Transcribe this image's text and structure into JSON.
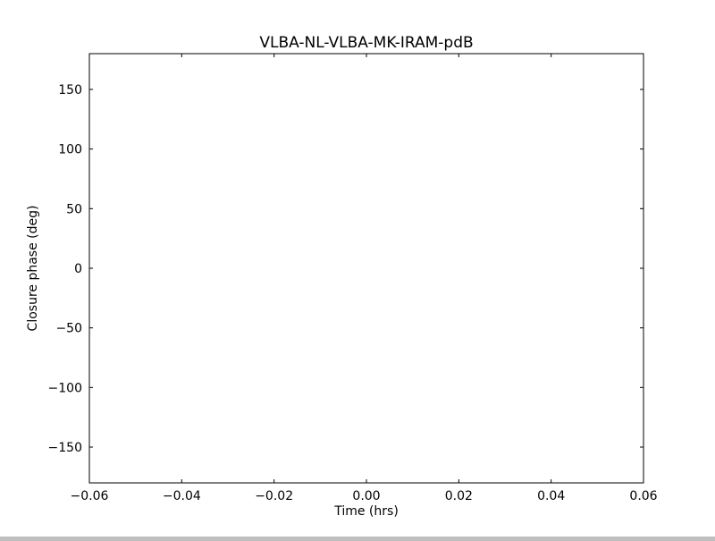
{
  "chart_data": {
    "type": "scatter",
    "title": "VLBA-NL-VLBA-MK-IRAM-pdB",
    "xlabel": "Time (hrs)",
    "ylabel": "Closure phase (deg)",
    "xlim": [
      -0.06,
      0.06
    ],
    "ylim": [
      -180,
      180
    ],
    "xticks": [
      -0.06,
      -0.04,
      -0.02,
      0.0,
      0.02,
      0.04,
      0.06
    ],
    "xtick_labels": [
      "−0.06",
      "−0.04",
      "−0.02",
      "0.00",
      "0.02",
      "0.04",
      "0.06"
    ],
    "yticks": [
      -150,
      -100,
      -50,
      0,
      50,
      100,
      150
    ],
    "ytick_labels": [
      "−150",
      "−100",
      "−50",
      "0",
      "50",
      "100",
      "150"
    ],
    "grid": false,
    "series": [
      {
        "x": [],
        "y": []
      }
    ]
  }
}
